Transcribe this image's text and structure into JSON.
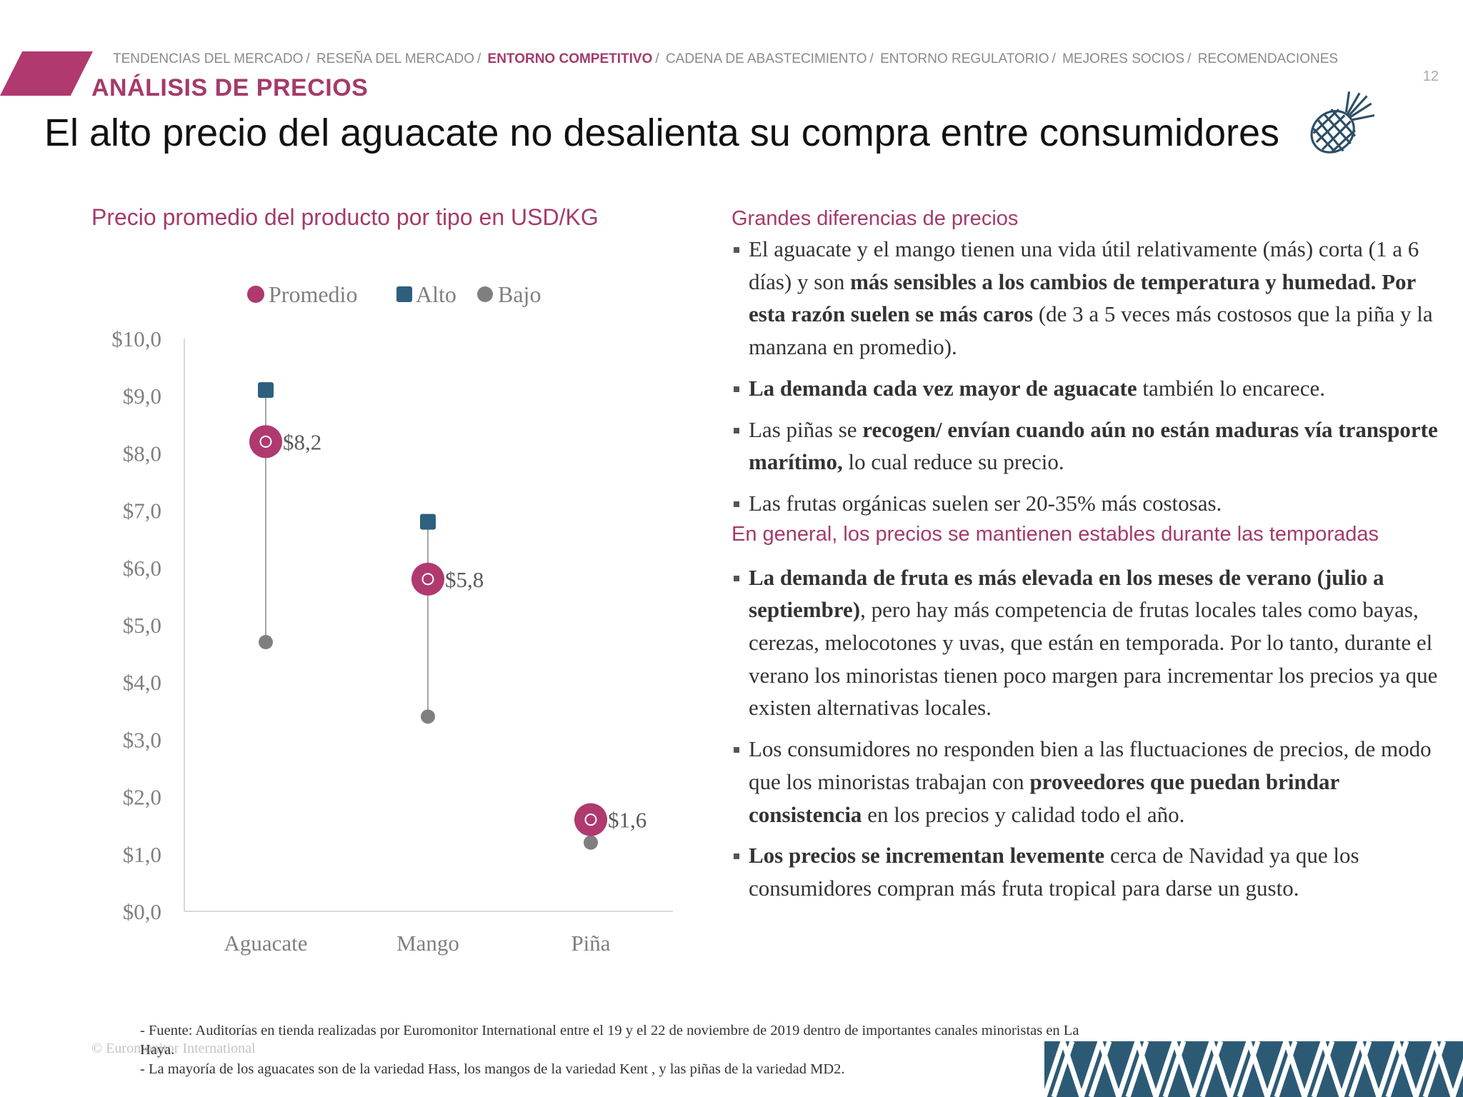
{
  "header": {
    "breadcrumb": [
      {
        "label": "TENDENCIAS DEL MERCADO",
        "active": false
      },
      {
        "label": "RESEÑA DEL MERCADO",
        "active": false
      },
      {
        "label": "ENTORNO COMPETITIVO",
        "active": true
      },
      {
        "label": "CADENA DE ABASTECIMIENTO",
        "active": false
      },
      {
        "label": "ENTORNO REGULATORIO",
        "active": false
      },
      {
        "label": "MEJORES SOCIOS",
        "active": false
      },
      {
        "label": "RECOMENDACIONES",
        "active": false
      }
    ],
    "page_number": "12",
    "section": "ANÁLISIS DE PRECIOS",
    "title": "El alto precio del aguacate no desalienta su compra entre consumidores"
  },
  "colors": {
    "accent": "#a43a6b",
    "promedio": "#b0396f",
    "alto": "#2f5f7f",
    "bajo": "#7f7f7f",
    "icon": "#2c4f66"
  },
  "icons": {
    "title_icon": "pineapple-icon",
    "corner_pattern": "geometric-pattern"
  },
  "chart_data": {
    "type": "scatter",
    "title": "Precio promedio del producto por tipo en USD/KG",
    "categories": [
      "Aguacate",
      "Mango",
      "Piña"
    ],
    "series": [
      {
        "name": "Promedio",
        "marker": "circle",
        "values": [
          8.2,
          5.8,
          1.6
        ]
      },
      {
        "name": "Alto",
        "marker": "square",
        "values": [
          9.1,
          6.8,
          1.7
        ]
      },
      {
        "name": "Bajo",
        "marker": "dot",
        "values": [
          4.7,
          3.4,
          1.2
        ]
      }
    ],
    "data_labels": [
      "$8,2",
      "$5,8",
      "$1,6"
    ],
    "y_ticks": [
      "$0,0",
      "$1,0",
      "$2,0",
      "$3,0",
      "$4,0",
      "$5,0",
      "$6,0",
      "$7,0",
      "$8,0",
      "$9,0",
      "$10,0"
    ],
    "ylim": [
      0,
      10
    ],
    "legend_position": "top",
    "grid": false
  },
  "panel": {
    "heading1": "Grandes diferencias de precios",
    "b1_t1": "El aguacate y el mango tienen una vida útil relativamente (más) corta (1 a 6 días) y son ",
    "b1_bold": "más sensibles a los  cambios de temperatura y humedad. Por esta razón suelen se más caros",
    "b1_t2": " (de 3 a 5 veces más costosos que la piña y la manzana en promedio).",
    "b2_bold": "La demanda cada vez mayor de aguacate",
    "b2_t1": " también lo encarece.",
    "b3_t1": "Las piñas se ",
    "b3_bold": "recogen/ envían cuando aún no están maduras vía transporte marítimo,",
    "b3_t2": " lo cual reduce su precio.",
    "b4_t1": "Las frutas orgánicas suelen ser 20-35% más costosas.",
    "heading2": "En general, los precios se mantienen estables durante las temporadas",
    "b5_bold": "La demanda de fruta es más elevada en los meses de verano (julio a septiembre)",
    "b5_t1": ", pero hay más competencia de frutas locales tales como bayas, cerezas, melocotones y uvas, que están en temporada. Por lo tanto, durante el verano los minoristas tienen poco margen para incrementar los precios ya que existen alternativas locales.",
    "b6_t1": "Los consumidores no responden bien a las fluctuaciones de precios, de modo que los minoristas trabajan con ",
    "b6_bold": "proveedores que puedan brindar consistencia",
    "b6_t2": " en los precios y calidad todo el año.",
    "b7_bold": "Los precios se incrementan levemente",
    "b7_t1": " cerca de Navidad ya que los consumidores compran más fruta tropical para darse un gusto."
  },
  "footer": {
    "copyright": "© Euromonitor International",
    "note1": "- Fuente: Auditorías en tienda realizadas por Euromonitor International entre el 19 y el 22  de noviembre de 2019 dentro de importantes canales minoristas en La Haya.",
    "note2": "- La mayoría de los aguacates son de la variedad Hass, los mangos de la variedad Kent , y las piñas de la variedad MD2."
  }
}
